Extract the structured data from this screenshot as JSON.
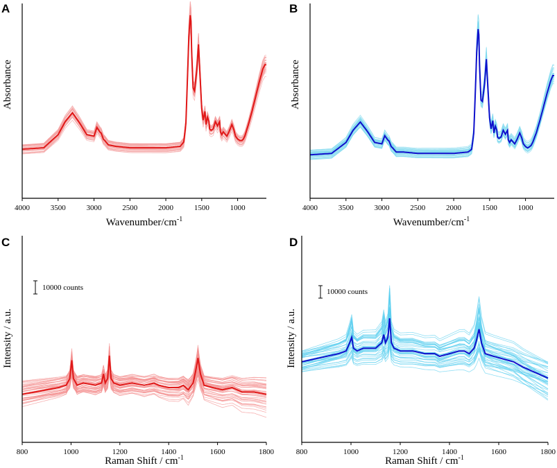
{
  "chart_data": [
    {
      "panel": "A",
      "type": "line",
      "xlabel": "Wavenumber/cm",
      "xlabel_sup": "-1",
      "ylabel": "Absorbance",
      "xlim": [
        4000,
        600
      ],
      "xticks": [
        4000,
        3500,
        3000,
        2500,
        2000,
        1500,
        1000
      ],
      "show_yticks": false,
      "colors": {
        "light": "#f4a0a0",
        "mean": "#e01818"
      },
      "n_replicates": 30,
      "series": [
        {
          "name": "mean",
          "x": [
            4000,
            3700,
            3500,
            3400,
            3300,
            3200,
            3100,
            3000,
            2960,
            2920,
            2900,
            2870,
            2850,
            2800,
            2700,
            2500,
            2000,
            1800,
            1750,
            1720,
            1700,
            1680,
            1660,
            1650,
            1640,
            1620,
            1600,
            1570,
            1545,
            1520,
            1500,
            1480,
            1455,
            1440,
            1420,
            1400,
            1390,
            1370,
            1340,
            1310,
            1280,
            1250,
            1240,
            1220,
            1200,
            1150,
            1120,
            1080,
            1050,
            1030,
            1000,
            970,
            940,
            920,
            900,
            850,
            800,
            750,
            700,
            650,
            620
          ],
          "y": [
            0.08,
            0.09,
            0.18,
            0.27,
            0.33,
            0.26,
            0.18,
            0.17,
            0.23,
            0.2,
            0.19,
            0.15,
            0.14,
            0.11,
            0.1,
            0.09,
            0.09,
            0.1,
            0.13,
            0.26,
            0.55,
            0.85,
            1.0,
            0.96,
            0.75,
            0.5,
            0.48,
            0.62,
            0.8,
            0.55,
            0.36,
            0.28,
            0.34,
            0.25,
            0.3,
            0.27,
            0.22,
            0.21,
            0.22,
            0.27,
            0.24,
            0.27,
            0.2,
            0.18,
            0.2,
            0.17,
            0.2,
            0.25,
            0.21,
            0.17,
            0.15,
            0.14,
            0.14,
            0.15,
            0.17,
            0.25,
            0.34,
            0.44,
            0.54,
            0.63,
            0.66
          ]
        }
      ]
    },
    {
      "panel": "B",
      "type": "line",
      "xlabel": "Wavenumber/cm",
      "xlabel_sup": "-1",
      "ylabel": "Absorbance",
      "xlim": [
        4000,
        600
      ],
      "xticks": [
        4000,
        3500,
        3000,
        2500,
        2000,
        1500,
        1000
      ],
      "show_yticks": false,
      "colors": {
        "light": "#7dd8ee",
        "mean": "#1010cc"
      },
      "n_replicates": 30,
      "series": [
        {
          "name": "mean",
          "x": [
            4000,
            3700,
            3500,
            3400,
            3300,
            3200,
            3100,
            3000,
            2960,
            2920,
            2900,
            2870,
            2850,
            2800,
            2700,
            2500,
            2000,
            1800,
            1750,
            1720,
            1700,
            1680,
            1660,
            1650,
            1640,
            1620,
            1600,
            1570,
            1545,
            1520,
            1500,
            1480,
            1455,
            1440,
            1420,
            1400,
            1390,
            1370,
            1340,
            1310,
            1280,
            1250,
            1240,
            1220,
            1200,
            1150,
            1120,
            1080,
            1050,
            1030,
            1000,
            970,
            940,
            920,
            900,
            850,
            800,
            750,
            700,
            650,
            620
          ],
          "y": [
            0.08,
            0.09,
            0.17,
            0.26,
            0.32,
            0.25,
            0.17,
            0.16,
            0.22,
            0.19,
            0.18,
            0.14,
            0.13,
            0.1,
            0.1,
            0.09,
            0.09,
            0.1,
            0.12,
            0.24,
            0.52,
            0.83,
            1.0,
            0.96,
            0.74,
            0.48,
            0.47,
            0.6,
            0.78,
            0.53,
            0.35,
            0.27,
            0.33,
            0.24,
            0.29,
            0.26,
            0.21,
            0.2,
            0.21,
            0.26,
            0.23,
            0.26,
            0.19,
            0.17,
            0.19,
            0.16,
            0.19,
            0.24,
            0.2,
            0.16,
            0.14,
            0.13,
            0.14,
            0.15,
            0.17,
            0.24,
            0.33,
            0.43,
            0.53,
            0.62,
            0.66
          ]
        }
      ]
    },
    {
      "panel": "C",
      "type": "line",
      "xlabel": "Raman Shift / cm",
      "xlabel_sup": "-1",
      "ylabel": "Intensity / a.u.",
      "xlim": [
        800,
        1800
      ],
      "xticks": [
        800,
        1000,
        1200,
        1400,
        1600,
        1800
      ],
      "show_yticks": false,
      "scale_bar_label": "10000 counts",
      "colors": {
        "light": "#f49090",
        "mean": "#e01818"
      },
      "n_replicates": 40,
      "series": [
        {
          "name": "mean",
          "x": [
            800,
            850,
            900,
            950,
            980,
            995,
            1003,
            1010,
            1025,
            1050,
            1100,
            1125,
            1133,
            1140,
            1150,
            1157,
            1164,
            1175,
            1200,
            1250,
            1300,
            1340,
            1360,
            1400,
            1440,
            1460,
            1480,
            1500,
            1510,
            1520,
            1530,
            1545,
            1580,
            1620,
            1660,
            1700,
            1750,
            1800
          ],
          "y": [
            0.4,
            0.41,
            0.42,
            0.43,
            0.44,
            0.47,
            0.55,
            0.47,
            0.44,
            0.45,
            0.44,
            0.45,
            0.49,
            0.45,
            0.47,
            0.57,
            0.47,
            0.45,
            0.44,
            0.45,
            0.44,
            0.45,
            0.44,
            0.43,
            0.43,
            0.44,
            0.42,
            0.45,
            0.5,
            0.56,
            0.49,
            0.44,
            0.43,
            0.42,
            0.43,
            0.41,
            0.41,
            0.4
          ]
        }
      ]
    },
    {
      "panel": "D",
      "type": "line",
      "xlabel": "Raman Shift / cm",
      "xlabel_sup": "-1",
      "ylabel": "Intensity / a.u.",
      "xlim": [
        800,
        1800
      ],
      "xticks": [
        800,
        1000,
        1200,
        1400,
        1600,
        1800
      ],
      "show_yticks": false,
      "scale_bar_label": "10000 counts",
      "colors": {
        "light": "#5fd0f0",
        "mean": "#1010cc"
      },
      "n_replicates": 40,
      "series": [
        {
          "name": "mean",
          "x": [
            800,
            850,
            900,
            950,
            980,
            995,
            1003,
            1010,
            1025,
            1050,
            1100,
            1125,
            1133,
            1140,
            1150,
            1157,
            1164,
            1175,
            1200,
            1250,
            1300,
            1340,
            1360,
            1400,
            1440,
            1460,
            1480,
            1500,
            1510,
            1520,
            1530,
            1545,
            1580,
            1620,
            1660,
            1700,
            1750,
            1800
          ],
          "y": [
            0.48,
            0.49,
            0.5,
            0.51,
            0.52,
            0.55,
            0.57,
            0.53,
            0.52,
            0.53,
            0.53,
            0.55,
            0.58,
            0.55,
            0.57,
            0.64,
            0.55,
            0.53,
            0.52,
            0.52,
            0.51,
            0.51,
            0.5,
            0.51,
            0.52,
            0.52,
            0.51,
            0.53,
            0.56,
            0.6,
            0.55,
            0.51,
            0.5,
            0.49,
            0.48,
            0.46,
            0.44,
            0.42
          ]
        }
      ]
    }
  ]
}
